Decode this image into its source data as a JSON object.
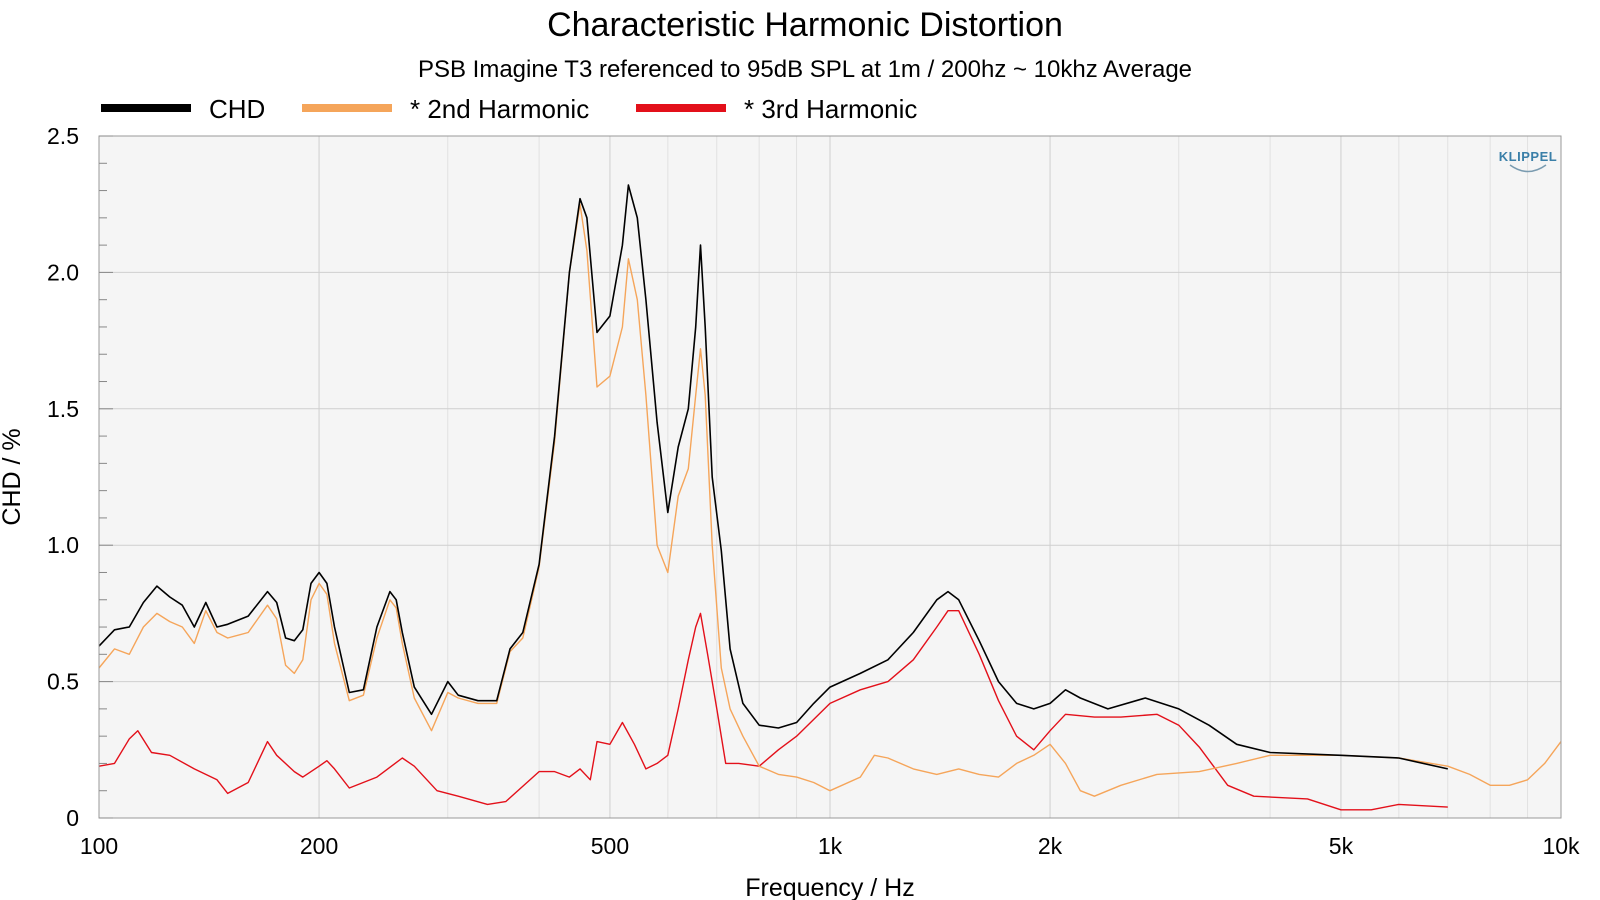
{
  "chart_data": {
    "type": "line",
    "title": "Characteristic Harmonic Distortion",
    "subtitle": "PSB Imagine T3 referenced to 95dB SPL at 1m / 200hz ~ 10khz Average",
    "xlabel": "Frequency / Hz",
    "ylabel": "CHD / %",
    "xscale": "log",
    "xlim": [
      100,
      10000
    ],
    "ylim": [
      0,
      2.5
    ],
    "grid": true,
    "legend": "top-left",
    "logo": "KLIPPEL",
    "x_ticks": [
      {
        "value": 100,
        "label": "100"
      },
      {
        "value": 200,
        "label": "200"
      },
      {
        "value": 500,
        "label": "500"
      },
      {
        "value": 1000,
        "label": "1k"
      },
      {
        "value": 2000,
        "label": "2k"
      },
      {
        "value": 5000,
        "label": "5k"
      },
      {
        "value": 10000,
        "label": "10k"
      }
    ],
    "y_ticks": [
      {
        "value": 0,
        "label": "0"
      },
      {
        "value": 0.5,
        "label": "0.5"
      },
      {
        "value": 1.0,
        "label": "1.0"
      },
      {
        "value": 1.5,
        "label": "1.5"
      },
      {
        "value": 2.0,
        "label": "2.0"
      },
      {
        "value": 2.5,
        "label": "2.5"
      }
    ],
    "series": [
      {
        "name": "CHD",
        "color": "#000000",
        "points": [
          [
            100,
            0.63
          ],
          [
            105,
            0.69
          ],
          [
            110,
            0.7
          ],
          [
            115,
            0.79
          ],
          [
            120,
            0.85
          ],
          [
            125,
            0.81
          ],
          [
            130,
            0.78
          ],
          [
            135,
            0.7
          ],
          [
            140,
            0.79
          ],
          [
            145,
            0.7
          ],
          [
            150,
            0.71
          ],
          [
            160,
            0.74
          ],
          [
            170,
            0.83
          ],
          [
            175,
            0.79
          ],
          [
            180,
            0.66
          ],
          [
            185,
            0.65
          ],
          [
            190,
            0.69
          ],
          [
            195,
            0.86
          ],
          [
            200,
            0.9
          ],
          [
            205,
            0.86
          ],
          [
            210,
            0.7
          ],
          [
            220,
            0.46
          ],
          [
            230,
            0.47
          ],
          [
            240,
            0.7
          ],
          [
            250,
            0.83
          ],
          [
            255,
            0.8
          ],
          [
            260,
            0.68
          ],
          [
            270,
            0.48
          ],
          [
            285,
            0.38
          ],
          [
            300,
            0.5
          ],
          [
            310,
            0.45
          ],
          [
            330,
            0.43
          ],
          [
            350,
            0.43
          ],
          [
            365,
            0.62
          ],
          [
            380,
            0.68
          ],
          [
            400,
            0.93
          ],
          [
            420,
            1.4
          ],
          [
            440,
            2.0
          ],
          [
            455,
            2.27
          ],
          [
            465,
            2.2
          ],
          [
            480,
            1.78
          ],
          [
            500,
            1.84
          ],
          [
            520,
            2.1
          ],
          [
            530,
            2.32
          ],
          [
            545,
            2.2
          ],
          [
            560,
            1.9
          ],
          [
            580,
            1.45
          ],
          [
            600,
            1.12
          ],
          [
            620,
            1.36
          ],
          [
            640,
            1.5
          ],
          [
            655,
            1.8
          ],
          [
            665,
            2.1
          ],
          [
            675,
            1.8
          ],
          [
            690,
            1.25
          ],
          [
            710,
            0.98
          ],
          [
            730,
            0.62
          ],
          [
            760,
            0.42
          ],
          [
            800,
            0.34
          ],
          [
            850,
            0.33
          ],
          [
            900,
            0.35
          ],
          [
            950,
            0.42
          ],
          [
            1000,
            0.48
          ],
          [
            1100,
            0.53
          ],
          [
            1200,
            0.58
          ],
          [
            1300,
            0.68
          ],
          [
            1400,
            0.8
          ],
          [
            1450,
            0.83
          ],
          [
            1500,
            0.8
          ],
          [
            1600,
            0.65
          ],
          [
            1700,
            0.5
          ],
          [
            1800,
            0.42
          ],
          [
            1900,
            0.4
          ],
          [
            2000,
            0.42
          ],
          [
            2100,
            0.47
          ],
          [
            2200,
            0.44
          ],
          [
            2400,
            0.4
          ],
          [
            2700,
            0.44
          ],
          [
            3000,
            0.4
          ],
          [
            3300,
            0.34
          ],
          [
            3600,
            0.27
          ],
          [
            4000,
            0.24
          ],
          [
            5000,
            0.23
          ],
          [
            6000,
            0.22
          ],
          [
            7000,
            0.18
          ]
        ]
      },
      {
        "name": "* 2nd Harmonic",
        "color": "#f5a55a",
        "points": [
          [
            100,
            0.55
          ],
          [
            105,
            0.62
          ],
          [
            110,
            0.6
          ],
          [
            115,
            0.7
          ],
          [
            120,
            0.75
          ],
          [
            125,
            0.72
          ],
          [
            130,
            0.7
          ],
          [
            135,
            0.64
          ],
          [
            140,
            0.76
          ],
          [
            145,
            0.68
          ],
          [
            150,
            0.66
          ],
          [
            160,
            0.68
          ],
          [
            170,
            0.78
          ],
          [
            175,
            0.73
          ],
          [
            180,
            0.56
          ],
          [
            185,
            0.53
          ],
          [
            190,
            0.58
          ],
          [
            195,
            0.8
          ],
          [
            200,
            0.86
          ],
          [
            205,
            0.82
          ],
          [
            210,
            0.64
          ],
          [
            220,
            0.43
          ],
          [
            230,
            0.45
          ],
          [
            240,
            0.66
          ],
          [
            250,
            0.8
          ],
          [
            255,
            0.77
          ],
          [
            260,
            0.64
          ],
          [
            270,
            0.44
          ],
          [
            285,
            0.32
          ],
          [
            300,
            0.46
          ],
          [
            310,
            0.44
          ],
          [
            330,
            0.42
          ],
          [
            350,
            0.42
          ],
          [
            365,
            0.61
          ],
          [
            380,
            0.66
          ],
          [
            400,
            0.92
          ],
          [
            420,
            1.38
          ],
          [
            440,
            2.0
          ],
          [
            455,
            2.25
          ],
          [
            465,
            2.08
          ],
          [
            480,
            1.58
          ],
          [
            500,
            1.62
          ],
          [
            520,
            1.8
          ],
          [
            530,
            2.05
          ],
          [
            545,
            1.9
          ],
          [
            560,
            1.55
          ],
          [
            580,
            1.0
          ],
          [
            600,
            0.9
          ],
          [
            620,
            1.18
          ],
          [
            640,
            1.28
          ],
          [
            655,
            1.55
          ],
          [
            665,
            1.72
          ],
          [
            675,
            1.55
          ],
          [
            690,
            1.0
          ],
          [
            710,
            0.55
          ],
          [
            730,
            0.4
          ],
          [
            760,
            0.3
          ],
          [
            800,
            0.19
          ],
          [
            850,
            0.16
          ],
          [
            900,
            0.15
          ],
          [
            950,
            0.13
          ],
          [
            1000,
            0.1
          ],
          [
            1100,
            0.15
          ],
          [
            1150,
            0.23
          ],
          [
            1200,
            0.22
          ],
          [
            1300,
            0.18
          ],
          [
            1400,
            0.16
          ],
          [
            1500,
            0.18
          ],
          [
            1600,
            0.16
          ],
          [
            1700,
            0.15
          ],
          [
            1800,
            0.2
          ],
          [
            1900,
            0.23
          ],
          [
            2000,
            0.27
          ],
          [
            2100,
            0.2
          ],
          [
            2200,
            0.1
          ],
          [
            2300,
            0.08
          ],
          [
            2500,
            0.12
          ],
          [
            2800,
            0.16
          ],
          [
            3200,
            0.17
          ],
          [
            3600,
            0.2
          ],
          [
            4000,
            0.23
          ],
          [
            5000,
            0.23
          ],
          [
            6000,
            0.22
          ],
          [
            7000,
            0.19
          ],
          [
            7500,
            0.16
          ],
          [
            8000,
            0.12
          ],
          [
            8500,
            0.12
          ],
          [
            9000,
            0.14
          ],
          [
            9500,
            0.2
          ],
          [
            10000,
            0.28
          ]
        ]
      },
      {
        "name": "* 3rd Harmonic",
        "color": "#e3101a",
        "points": [
          [
            100,
            0.19
          ],
          [
            105,
            0.2
          ],
          [
            110,
            0.29
          ],
          [
            113,
            0.32
          ],
          [
            118,
            0.24
          ],
          [
            125,
            0.23
          ],
          [
            135,
            0.18
          ],
          [
            145,
            0.14
          ],
          [
            150,
            0.09
          ],
          [
            160,
            0.13
          ],
          [
            170,
            0.28
          ],
          [
            175,
            0.23
          ],
          [
            185,
            0.17
          ],
          [
            190,
            0.15
          ],
          [
            200,
            0.19
          ],
          [
            205,
            0.21
          ],
          [
            210,
            0.18
          ],
          [
            220,
            0.11
          ],
          [
            240,
            0.15
          ],
          [
            260,
            0.22
          ],
          [
            270,
            0.19
          ],
          [
            290,
            0.1
          ],
          [
            310,
            0.08
          ],
          [
            340,
            0.05
          ],
          [
            360,
            0.06
          ],
          [
            400,
            0.17
          ],
          [
            420,
            0.17
          ],
          [
            440,
            0.15
          ],
          [
            455,
            0.18
          ],
          [
            470,
            0.14
          ],
          [
            480,
            0.28
          ],
          [
            500,
            0.27
          ],
          [
            520,
            0.35
          ],
          [
            540,
            0.27
          ],
          [
            560,
            0.18
          ],
          [
            580,
            0.2
          ],
          [
            600,
            0.23
          ],
          [
            620,
            0.4
          ],
          [
            640,
            0.58
          ],
          [
            655,
            0.7
          ],
          [
            665,
            0.75
          ],
          [
            680,
            0.6
          ],
          [
            700,
            0.4
          ],
          [
            720,
            0.2
          ],
          [
            750,
            0.2
          ],
          [
            800,
            0.19
          ],
          [
            850,
            0.25
          ],
          [
            900,
            0.3
          ],
          [
            1000,
            0.42
          ],
          [
            1100,
            0.47
          ],
          [
            1200,
            0.5
          ],
          [
            1300,
            0.58
          ],
          [
            1400,
            0.7
          ],
          [
            1450,
            0.76
          ],
          [
            1500,
            0.76
          ],
          [
            1600,
            0.6
          ],
          [
            1700,
            0.43
          ],
          [
            1800,
            0.3
          ],
          [
            1900,
            0.25
          ],
          [
            2000,
            0.32
          ],
          [
            2100,
            0.38
          ],
          [
            2300,
            0.37
          ],
          [
            2500,
            0.37
          ],
          [
            2800,
            0.38
          ],
          [
            3000,
            0.34
          ],
          [
            3200,
            0.26
          ],
          [
            3500,
            0.12
          ],
          [
            3800,
            0.08
          ],
          [
            4500,
            0.07
          ],
          [
            5000,
            0.03
          ],
          [
            5500,
            0.03
          ],
          [
            6000,
            0.05
          ],
          [
            7000,
            0.04
          ]
        ]
      }
    ]
  }
}
